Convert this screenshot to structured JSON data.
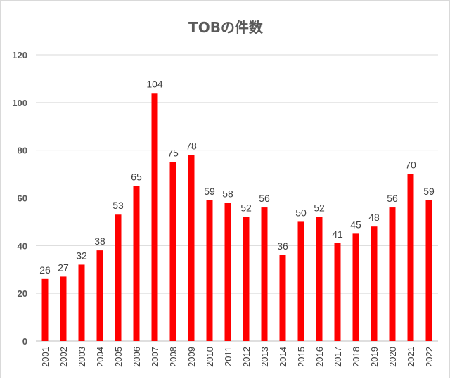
{
  "chart_data": {
    "type": "bar",
    "title": "TOBの件数",
    "xlabel": "",
    "ylabel": "",
    "categories": [
      "2001",
      "2002",
      "2003",
      "2004",
      "2005",
      "2006",
      "2007",
      "2008",
      "2009",
      "2010",
      "2011",
      "2012",
      "2013",
      "2014",
      "2015",
      "2016",
      "2017",
      "2018",
      "2019",
      "2020",
      "2021",
      "2022"
    ],
    "values": [
      26,
      27,
      32,
      38,
      53,
      65,
      104,
      75,
      78,
      59,
      58,
      52,
      56,
      36,
      50,
      52,
      41,
      45,
      48,
      56,
      70,
      59
    ],
    "ylim": [
      0,
      120
    ],
    "yticks": [
      0,
      20,
      40,
      60,
      80,
      100,
      120
    ],
    "grid": true,
    "legend": "none",
    "data_labels": true,
    "bar_color": "#ff0000"
  }
}
